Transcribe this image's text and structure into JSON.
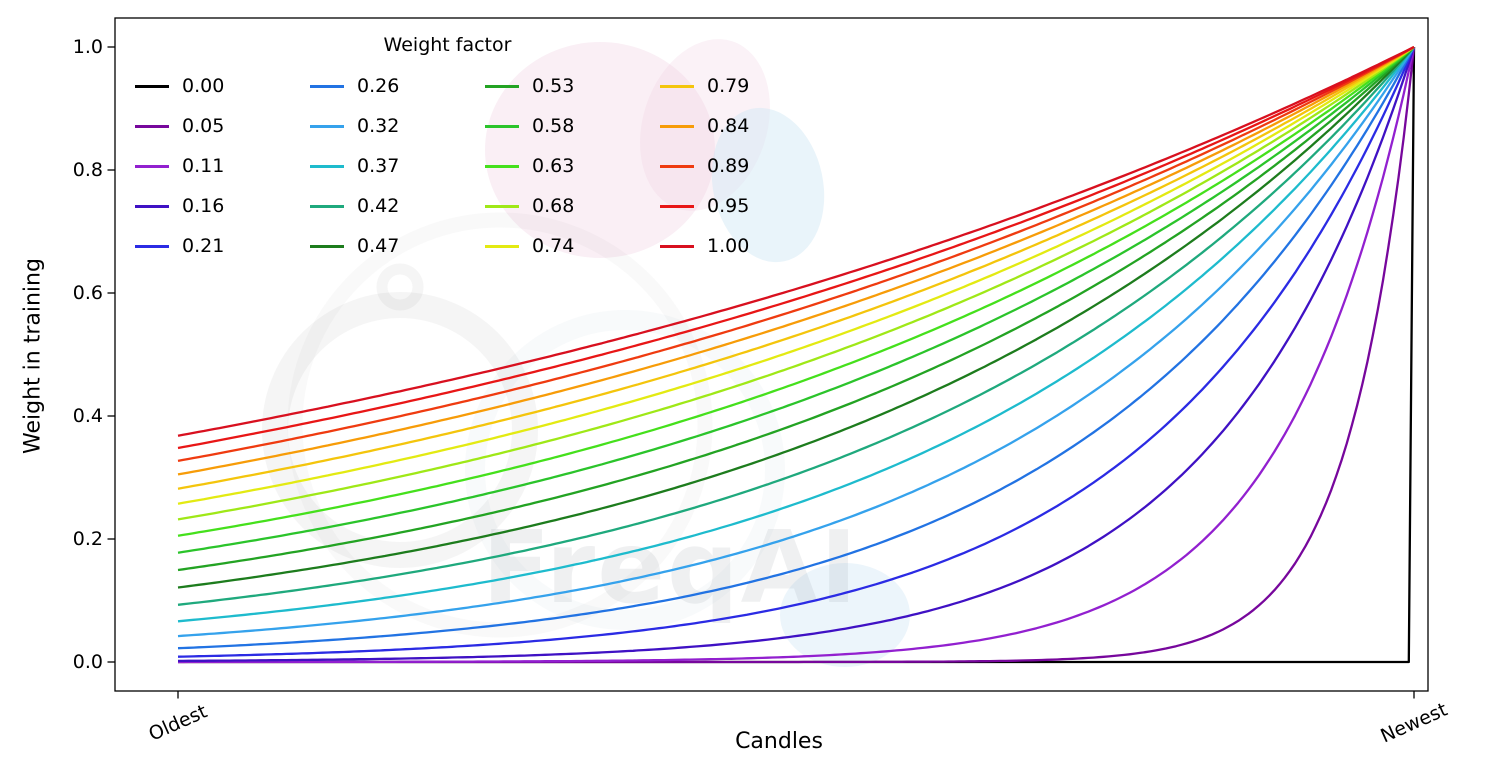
{
  "figure": {
    "watermark_text": "FreqAI"
  },
  "chart_data": {
    "type": "line",
    "title": "",
    "xlabel": "Candles",
    "ylabel": "Weight in training",
    "xtick_labels": [
      "Oldest",
      "Newest"
    ],
    "ytick_labels": [
      "0.0",
      "0.2",
      "0.4",
      "0.6",
      "0.8",
      "1.0"
    ],
    "yticks": [
      0,
      0.2,
      0.4,
      0.6,
      0.8,
      1.0
    ],
    "ylim": [
      0,
      1
    ],
    "grid": false,
    "legend_title": "Weight factor",
    "legend_position": "upper-left",
    "legend_columns": 4,
    "x_samples": 240,
    "curve_formula": "weight(t) = exp(-(1 - t) / factor), t from 0 at Oldest candle to 1 at Newest candle; all curves reach 1.0 at Newest. Factor 0.00 is 0 everywhere except weight 1 at the newest candle. Left-edge value of each curve = exp(-1/factor), e.g. 0.37 for factor 1.00.",
    "series": [
      {
        "label": "0.00",
        "factor": 0.0,
        "color": "#000000"
      },
      {
        "label": "0.05",
        "factor": 0.0526,
        "color": "#77079c"
      },
      {
        "label": "0.11",
        "factor": 0.1053,
        "color": "#9220cf"
      },
      {
        "label": "0.16",
        "factor": 0.1579,
        "color": "#3f11c4"
      },
      {
        "label": "0.21",
        "factor": 0.2105,
        "color": "#2b2be4"
      },
      {
        "label": "0.26",
        "factor": 0.2632,
        "color": "#2273e3"
      },
      {
        "label": "0.32",
        "factor": 0.3158,
        "color": "#35a2ec"
      },
      {
        "label": "0.37",
        "factor": 0.3684,
        "color": "#1ebbcd"
      },
      {
        "label": "0.42",
        "factor": 0.4211,
        "color": "#1fa97d"
      },
      {
        "label": "0.47",
        "factor": 0.4737,
        "color": "#1d7c1d"
      },
      {
        "label": "0.53",
        "factor": 0.5263,
        "color": "#23a323"
      },
      {
        "label": "0.58",
        "factor": 0.5789,
        "color": "#2bc42b"
      },
      {
        "label": "0.63",
        "factor": 0.6316,
        "color": "#45e01c"
      },
      {
        "label": "0.68",
        "factor": 0.6842,
        "color": "#9fe817"
      },
      {
        "label": "0.74",
        "factor": 0.7368,
        "color": "#e3ea12"
      },
      {
        "label": "0.79",
        "factor": 0.7895,
        "color": "#f4c50c"
      },
      {
        "label": "0.84",
        "factor": 0.8421,
        "color": "#f79c08"
      },
      {
        "label": "0.89",
        "factor": 0.8947,
        "color": "#ef3b10"
      },
      {
        "label": "0.95",
        "factor": 0.9474,
        "color": "#e81616"
      },
      {
        "label": "1.00",
        "factor": 1.0,
        "color": "#d8101f"
      }
    ]
  }
}
